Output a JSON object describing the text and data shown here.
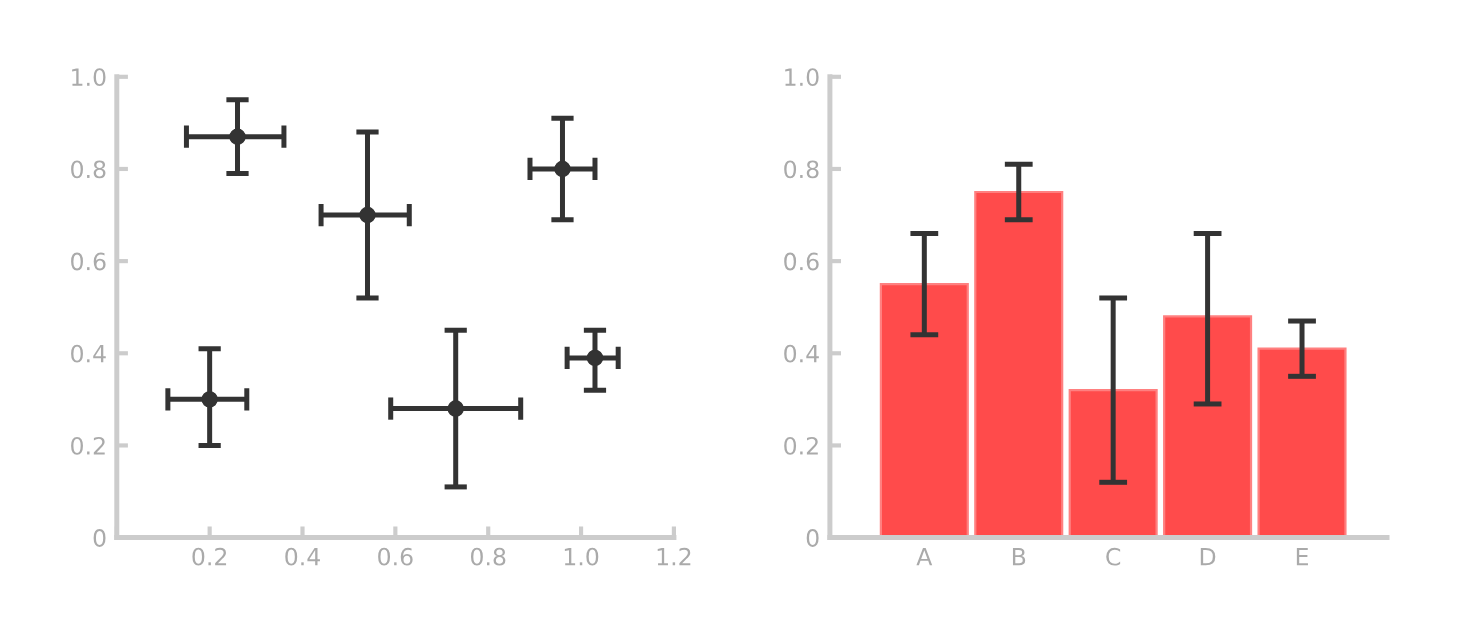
{
  "chart_data": [
    {
      "type": "scatter",
      "x": [
        0.26,
        0.54,
        0.96,
        0.2,
        0.73,
        1.03
      ],
      "values": [
        0.87,
        0.7,
        0.8,
        0.3,
        0.28,
        0.39
      ],
      "color": "#333333",
      "marker": "circle",
      "errors": [
        [
          0.79,
          0.95
        ],
        [
          0.52,
          0.88
        ],
        [
          0.69,
          0.91
        ],
        [
          0.2,
          0.41
        ],
        [
          0.11,
          0.45
        ],
        [
          0.32,
          0.45
        ]
      ],
      "xerrors": [
        [
          0.15,
          0.36
        ],
        [
          0.44,
          0.63
        ],
        [
          0.89,
          1.03
        ],
        [
          0.11,
          0.28
        ],
        [
          0.59,
          0.87
        ],
        [
          0.97,
          1.08
        ]
      ],
      "xlim": [
        0,
        1.2
      ],
      "ylim": [
        0,
        1.0
      ],
      "xticks": [
        {
          "value": 0,
          "label": null
        },
        0.2,
        0.4,
        0.6,
        0.8,
        {
          "value": 1.0,
          "label": "1.0"
        },
        1.2
      ],
      "yticks": [
        0,
        0.2,
        0.4,
        0.6,
        0.8,
        {
          "value": 1.0,
          "label": "1.0"
        }
      ],
      "grid": false
    },
    {
      "type": "bar",
      "categories": [
        "A",
        "B",
        "C",
        "D",
        "E"
      ],
      "values": [
        0.55,
        0.75,
        0.32,
        0.48,
        0.41
      ],
      "color": "#ff4b4b",
      "errors": [
        [
          0.44,
          0.66
        ],
        [
          0.69,
          0.81
        ],
        [
          0.12,
          0.52
        ],
        [
          0.29,
          0.66
        ],
        [
          0.35,
          0.47
        ]
      ],
      "ylim": [
        0,
        1.0
      ],
      "yticks": [
        0,
        0.2,
        0.4,
        0.6,
        0.8,
        {
          "value": 1.0,
          "label": "1.0"
        }
      ],
      "grid": false
    }
  ]
}
